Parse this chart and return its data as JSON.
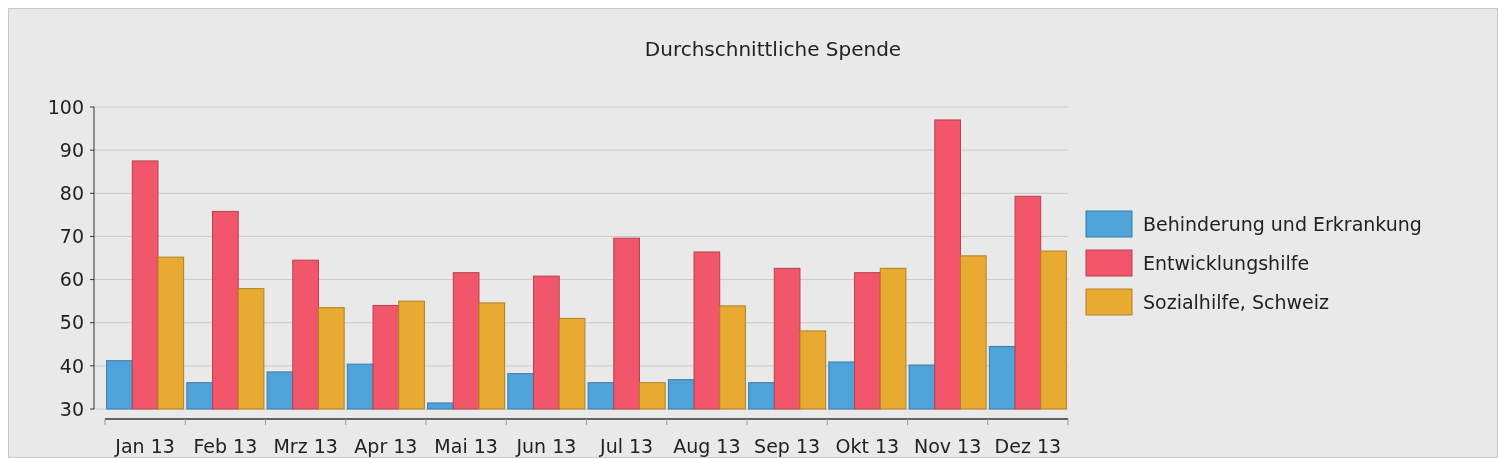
{
  "chart_data": {
    "type": "bar",
    "title": "Durchschnittliche Spende",
    "categories": [
      "Jan 13",
      "Feb 13",
      "Mrz 13",
      "Apr 13",
      "Mai 13",
      "Jun 13",
      "Jul 13",
      "Aug 13",
      "Sep 13",
      "Okt 13",
      "Nov 13",
      "Dez 13"
    ],
    "series": [
      {
        "name": "Behinderung und Erkrankung",
        "color": "#4fa3db",
        "values": [
          41.2,
          36.1,
          38.6,
          40.4,
          31.4,
          38.2,
          36.1,
          36.8,
          36.1,
          40.9,
          40.2,
          44.5
        ]
      },
      {
        "name": "Entwicklungshilfe",
        "color": "#f2566b",
        "values": [
          87.5,
          75.8,
          64.5,
          54,
          61.6,
          60.8,
          69.6,
          66.4,
          62.6,
          61.6,
          97,
          79.3
        ]
      },
      {
        "name": "Sozialhilfe, Schweiz",
        "color": "#e8aa31",
        "values": [
          65.2,
          57.9,
          53.5,
          55,
          54.6,
          51,
          36.1,
          53.9,
          48.1,
          62.6,
          65.5,
          66.6
        ]
      }
    ],
    "ylim": [
      30,
      100
    ],
    "yticks": [
      30,
      40,
      50,
      60,
      70,
      80,
      90,
      100
    ],
    "grid": "y",
    "legend": "right"
  }
}
